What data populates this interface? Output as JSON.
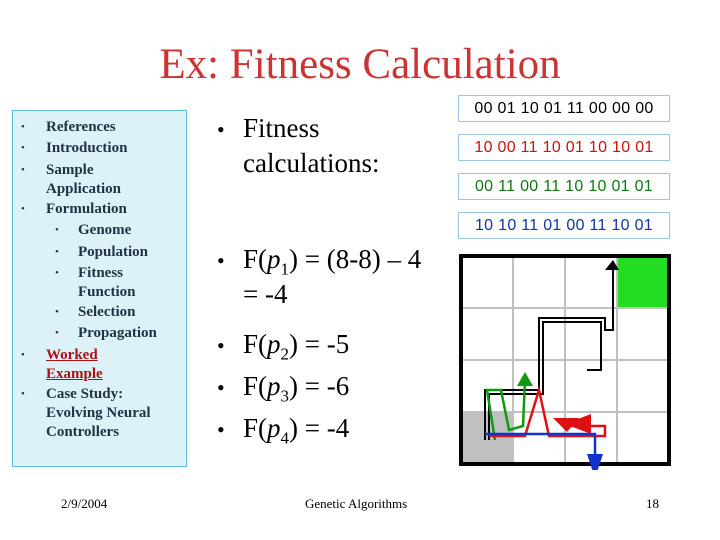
{
  "title": "Ex: Fitness Calculation",
  "sidebar": {
    "items": [
      {
        "label": "References"
      },
      {
        "label": "Introduction"
      },
      {
        "label": "Sample Application"
      },
      {
        "label": "Formulation"
      },
      {
        "label": "Genome"
      },
      {
        "label": "Population"
      },
      {
        "label": "Fitness Function"
      },
      {
        "label": "Selection"
      },
      {
        "label": "Propagation"
      },
      {
        "label": "Worked Example"
      },
      {
        "label": "Case Study: Evolving Neural Controllers"
      }
    ]
  },
  "main": {
    "heading": [
      "Fitness",
      "calculations:"
    ],
    "f1": {
      "pre": "F(",
      "var": "p",
      "sub": "1",
      "post": ") = (8-8) – 4",
      "line2": "= -4"
    },
    "f2": {
      "pre": "F(",
      "var": "p",
      "sub": "2",
      "post": ") = -5"
    },
    "f3": {
      "pre": "F(",
      "var": "p",
      "sub": "3",
      "post": ") = -6"
    },
    "f4": {
      "pre": "F(",
      "var": "p",
      "sub": "4",
      "post": ") = -4"
    }
  },
  "genomes": [
    {
      "text": "00 01 10 01 11 00 00 00",
      "color": "#000000"
    },
    {
      "text": "10 00 11 10 01 10 10 01",
      "color": "#cc1111"
    },
    {
      "text": "00 11 00 11 10 10 01 01",
      "color": "#117711"
    },
    {
      "text": "10 10 11 01 00 11 10 01",
      "color": "#1133aa"
    }
  ],
  "footer": {
    "date": "2/9/2004",
    "center": "Genetic Algorithms",
    "page": "18"
  }
}
